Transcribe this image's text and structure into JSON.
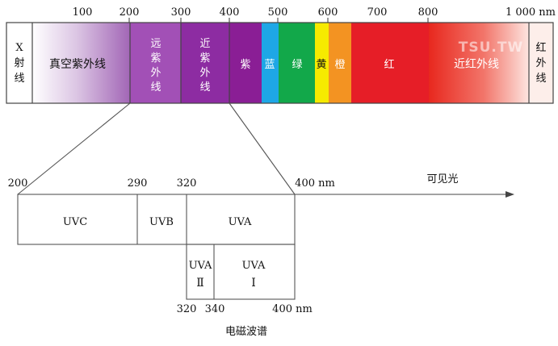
{
  "spectrum": {
    "ticks": [
      "100",
      "200",
      "300",
      "400",
      "500",
      "600",
      "700",
      "800",
      "1 000 nm"
    ],
    "bands": {
      "xray": [
        "X",
        "射",
        "线"
      ],
      "vacuum_uv": "真空紫外线",
      "far_uv": [
        "远",
        "紫",
        "外",
        "线"
      ],
      "near_uv": [
        "近",
        "紫",
        "外",
        "线"
      ],
      "violet": "紫",
      "blue": "蓝",
      "green": "绿",
      "yellow": "黄",
      "orange": "橙",
      "red": "红",
      "near_ir": "近红外线",
      "infrared": [
        "红",
        "外",
        "线"
      ]
    },
    "colors": {
      "violet": "#8a1e95",
      "blue": "#1ea7e6",
      "green": "#12a84a",
      "yellow": "#f6ea00",
      "orange": "#f39322",
      "red": "#e61e27"
    }
  },
  "uv_detail": {
    "top_ticks": [
      "200",
      "290",
      "320",
      "400 nm"
    ],
    "arrow_label": "可见光",
    "bands": {
      "uvc": "UVC",
      "uvb": "UVB",
      "uva": "UVA"
    },
    "sub_bands": {
      "uva2": {
        "name": "UVA",
        "numeral": "Ⅱ"
      },
      "uva1": {
        "name": "UVA",
        "numeral": "Ⅰ"
      }
    },
    "bottom_ticks": [
      "320",
      "340",
      "400 nm"
    ]
  },
  "caption": "电磁波谱",
  "watermark": "TSU.TW"
}
